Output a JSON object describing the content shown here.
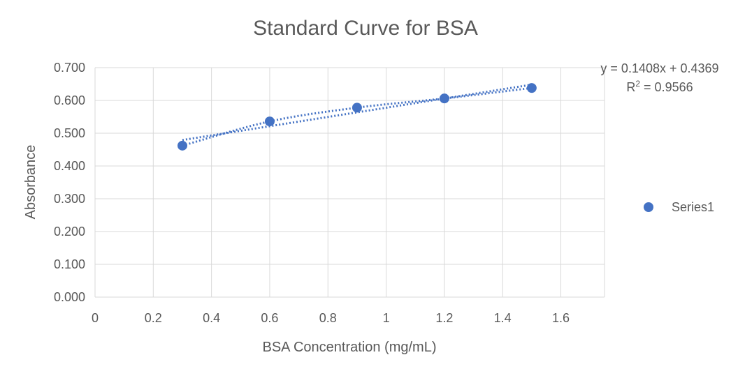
{
  "chart_data": {
    "type": "scatter",
    "title": "Standard Curve for BSA",
    "xlabel": "BSA Concentration (mg/mL)",
    "ylabel": "Absorbance",
    "xlim": [
      0,
      1.75
    ],
    "ylim": [
      0,
      0.7
    ],
    "x_ticks": [
      0,
      0.2,
      0.4,
      0.6,
      0.8,
      1,
      1.2,
      1.4,
      1.6
    ],
    "x_tick_labels": [
      "0",
      "0.2",
      "0.4",
      "0.6",
      "0.8",
      "1",
      "1.2",
      "1.4",
      "1.6"
    ],
    "y_ticks": [
      0,
      0.1,
      0.2,
      0.3,
      0.4,
      0.5,
      0.6,
      0.7
    ],
    "y_tick_labels": [
      "0.000",
      "0.100",
      "0.200",
      "0.300",
      "0.400",
      "0.500",
      "0.600",
      "0.700"
    ],
    "grid": true,
    "legend_position": "right",
    "series": [
      {
        "name": "Series1",
        "color": "#4472c4",
        "x": [
          0.3,
          0.6,
          0.9,
          1.2,
          1.5
        ],
        "y": [
          0.462,
          0.536,
          0.578,
          0.606,
          0.638
        ]
      }
    ],
    "trendlines": [
      {
        "type": "linear",
        "color": "#4472c4",
        "slope": 0.1408,
        "intercept": 0.4369,
        "x_range": [
          0.3,
          1.5
        ]
      },
      {
        "type": "polynomial",
        "color": "#4472c4",
        "x_range": [
          0.3,
          1.5
        ]
      }
    ],
    "annotations": {
      "equation": "y = 0.1408x + 0.4369",
      "r_squared_prefix": "R",
      "r_squared_sup": "2",
      "r_squared_value": " = 0.9566"
    }
  }
}
